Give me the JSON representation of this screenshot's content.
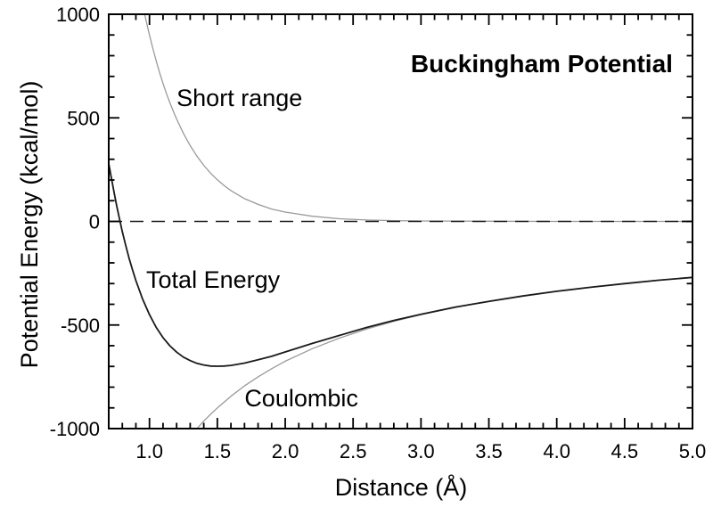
{
  "chart_data": {
    "type": "line",
    "title": "Buckingham Potential",
    "xlabel": "Distance  (Å)",
    "ylabel": "Potential Energy  (kcal/mol)",
    "xlim": [
      0.7,
      5.0
    ],
    "ylim": [
      -1000,
      1000
    ],
    "x_major_ticks": [
      1.0,
      1.5,
      2.0,
      2.5,
      3.0,
      3.5,
      4.0,
      4.5,
      5.0
    ],
    "x_tick_labels": [
      "1.0",
      "1.5",
      "2.0",
      "2.5",
      "3.0",
      "3.5",
      "4.0",
      "4.5",
      "5.0"
    ],
    "x_minor_step": 0.1,
    "y_major_ticks": [
      1000,
      500,
      0,
      -500,
      -1000
    ],
    "y_tick_labels": [
      "1000",
      "500",
      "0",
      "-500",
      "-1000"
    ],
    "y_minor_step": 100,
    "grid": false,
    "legend_position": "none (inline curve labels)",
    "zero_line": {
      "y": 0,
      "style": "dashed",
      "color": "#1a1a1a"
    },
    "colors": {
      "gray_curve": "#9a9a9a",
      "black_curve": "#1a1a1a",
      "background": "#ffffff"
    },
    "series": [
      {
        "id": "short-range",
        "name": "Short range",
        "color": "#9a9a9a",
        "width": 1.3,
        "points": [
          [
            0.85,
            1411
          ],
          [
            0.9,
            1214
          ],
          [
            0.925,
            1126
          ],
          [
            0.95,
            1045
          ],
          [
            0.975,
            970
          ],
          [
            1.0,
            900
          ],
          [
            1.025,
            835
          ],
          [
            1.05,
            774
          ],
          [
            1.075,
            718
          ],
          [
            1.1,
            666
          ],
          [
            1.125,
            618
          ],
          [
            1.15,
            574
          ],
          [
            1.175,
            532
          ],
          [
            1.2,
            494
          ],
          [
            1.25,
            425
          ],
          [
            1.3,
            366
          ],
          [
            1.35,
            315
          ],
          [
            1.4,
            271
          ],
          [
            1.45,
            233
          ],
          [
            1.5,
            201
          ],
          [
            1.55,
            173
          ],
          [
            1.6,
            149
          ],
          [
            1.7,
            110
          ],
          [
            1.8,
            82
          ],
          [
            1.9,
            60
          ],
          [
            2.0,
            45
          ],
          [
            2.2,
            25
          ],
          [
            2.4,
            13
          ],
          [
            2.6,
            7
          ],
          [
            2.8,
            4
          ],
          [
            3.0,
            2
          ],
          [
            3.5,
            1
          ],
          [
            4.0,
            0
          ],
          [
            5.0,
            0
          ]
        ]
      },
      {
        "id": "coulombic",
        "name": "Coulombic",
        "color": "#9a9a9a",
        "width": 1.3,
        "points": [
          [
            1.32,
            -1023
          ],
          [
            1.35,
            -1000
          ],
          [
            1.4,
            -964
          ],
          [
            1.45,
            -931
          ],
          [
            1.5,
            -900
          ],
          [
            1.6,
            -844
          ],
          [
            1.7,
            -794
          ],
          [
            1.8,
            -750
          ],
          [
            1.9,
            -711
          ],
          [
            2.0,
            -675
          ],
          [
            2.2,
            -614
          ],
          [
            2.4,
            -563
          ],
          [
            2.6,
            -519
          ],
          [
            2.8,
            -482
          ],
          [
            3.0,
            -450
          ],
          [
            3.2,
            -422
          ],
          [
            3.4,
            -397
          ],
          [
            3.6,
            -375
          ],
          [
            3.8,
            -355
          ],
          [
            4.0,
            -338
          ],
          [
            4.2,
            -321
          ],
          [
            4.4,
            -307
          ],
          [
            4.6,
            -293
          ],
          [
            4.8,
            -281
          ],
          [
            5.0,
            -270
          ]
        ]
      },
      {
        "id": "total-energy",
        "name": "Total Energy",
        "color": "#1a1a1a",
        "width": 1.8,
        "points": [
          [
            0.7,
            279
          ],
          [
            0.72,
            209
          ],
          [
            0.74,
            138
          ],
          [
            0.76,
            72
          ],
          [
            0.78,
            10
          ],
          [
            0.8,
            -49
          ],
          [
            0.825,
            -115
          ],
          [
            0.85,
            -177
          ],
          [
            0.875,
            -234
          ],
          [
            0.9,
            -286
          ],
          [
            0.95,
            -376
          ],
          [
            1.0,
            -450
          ],
          [
            1.05,
            -512
          ],
          [
            1.1,
            -561
          ],
          [
            1.15,
            -600
          ],
          [
            1.2,
            -631
          ],
          [
            1.25,
            -655
          ],
          [
            1.3,
            -672
          ],
          [
            1.35,
            -685
          ],
          [
            1.4,
            -693
          ],
          [
            1.45,
            -698
          ],
          [
            1.5,
            -699
          ],
          [
            1.55,
            -698
          ],
          [
            1.6,
            -695
          ],
          [
            1.7,
            -684
          ],
          [
            1.8,
            -668
          ],
          [
            1.9,
            -651
          ],
          [
            2.0,
            -630
          ],
          [
            2.2,
            -589
          ],
          [
            2.4,
            -550
          ],
          [
            2.6,
            -512
          ],
          [
            2.8,
            -478
          ],
          [
            3.0,
            -448
          ],
          [
            3.25,
            -414
          ],
          [
            3.5,
            -386
          ],
          [
            3.75,
            -360
          ],
          [
            4.0,
            -337
          ],
          [
            4.25,
            -318
          ],
          [
            4.5,
            -300
          ],
          [
            4.75,
            -284
          ],
          [
            5.0,
            -270
          ]
        ]
      }
    ],
    "annotations": [
      {
        "id": "chart-title",
        "text": "Buckingham Potential",
        "x": 3.89,
        "y": 720,
        "anchor": "middle",
        "bold": true,
        "color": "#000000"
      },
      {
        "id": "short-range-label",
        "text": "Short range",
        "x": 1.2,
        "y": 557,
        "anchor": "start",
        "bold": false,
        "color": "#9a9a9a"
      },
      {
        "id": "total-energy-label",
        "text": "Total Energy",
        "x": 0.976,
        "y": -320,
        "anchor": "start",
        "bold": false,
        "color": "#1a1a1a"
      },
      {
        "id": "coulombic-label",
        "text": "Coulombic",
        "x": 1.7,
        "y": -892,
        "anchor": "start",
        "bold": false,
        "color": "#9a9a9a"
      }
    ]
  }
}
